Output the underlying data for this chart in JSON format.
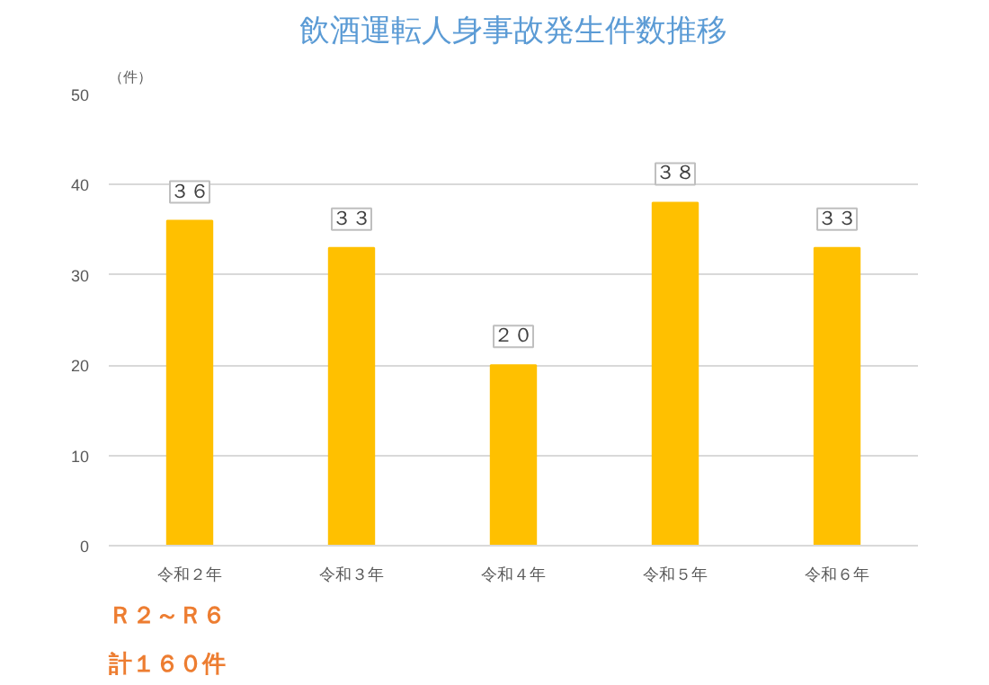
{
  "chart_data": {
    "type": "bar",
    "title": "飲酒運転人身事故発生件数推移",
    "ylabel": "（件）",
    "categories": [
      "令和２年",
      "令和３年",
      "令和４年",
      "令和５年",
      "令和６年"
    ],
    "values": [
      36,
      33,
      20,
      38,
      33
    ],
    "value_labels": [
      "３６",
      "３３",
      "２０",
      "３８",
      "３３"
    ],
    "color": "#ffc000",
    "ylim": [
      0,
      50
    ],
    "yticks": [
      0,
      10,
      20,
      30,
      40,
      50
    ],
    "grid": "y",
    "annotations": [
      "Ｒ２～Ｒ６",
      "計１６０件"
    ]
  }
}
